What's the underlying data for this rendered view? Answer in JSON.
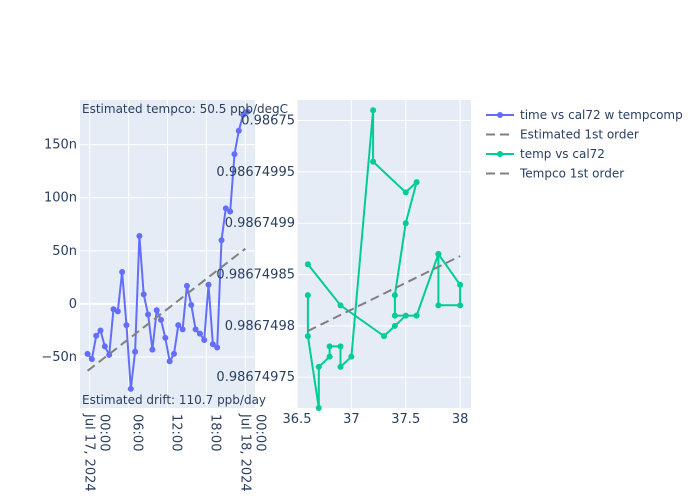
{
  "chart_data": [
    {
      "type": "line",
      "xlabel": "",
      "ylabel": "",
      "x_ticks": [
        "Jul 17, 2024 00:00",
        "06:00",
        "12:00",
        "18:00",
        "Jul 18, 2024 00:00"
      ],
      "y_ticks": [
        "−50n",
        "0",
        "50n",
        "100n",
        "150n"
      ],
      "y_tick_values": [
        -5e-08,
        0,
        5e-08,
        1e-07,
        1.5e-07
      ],
      "xlim": [
        "2024-07-16 22:30",
        "2024-07-18 01:30"
      ],
      "ylim": [
        -9.8e-08,
        1.92e-07
      ],
      "annotations": {
        "tempco": "Estimated tempco:  50.5 ppb/degC",
        "drift": "Estimated drift:  110.7 ppb/day"
      },
      "series": [
        {
          "name": "time vs cal72 w tempcomp",
          "color": "#636efa",
          "mode": "lines+markers",
          "x": [
            "2024-07-16 23:40",
            "2024-07-17 00:20",
            "2024-07-17 01:00",
            "2024-07-17 01:40",
            "2024-07-17 02:20",
            "2024-07-17 03:00",
            "2024-07-17 03:40",
            "2024-07-17 04:20",
            "2024-07-17 05:00",
            "2024-07-17 05:40",
            "2024-07-17 06:20",
            "2024-07-17 07:00",
            "2024-07-17 07:40",
            "2024-07-17 08:20",
            "2024-07-17 09:00",
            "2024-07-17 09:40",
            "2024-07-17 10:20",
            "2024-07-17 11:00",
            "2024-07-17 11:40",
            "2024-07-17 12:20",
            "2024-07-17 13:00",
            "2024-07-17 13:40",
            "2024-07-17 14:20",
            "2024-07-17 15:00",
            "2024-07-17 15:40",
            "2024-07-17 16:20",
            "2024-07-17 17:00",
            "2024-07-17 17:40",
            "2024-07-17 18:20",
            "2024-07-17 19:00",
            "2024-07-17 19:40",
            "2024-07-17 20:20",
            "2024-07-17 21:00",
            "2024-07-17 21:40",
            "2024-07-17 22:20",
            "2024-07-17 23:00",
            "2024-07-17 23:40",
            "2024-07-18 00:20"
          ],
          "y": [
            -4.7e-08,
            -5.2e-08,
            -3e-08,
            -2.5e-08,
            -4e-08,
            -4.8e-08,
            -5e-09,
            -7e-09,
            3e-08,
            -2e-08,
            -8e-08,
            -4.5e-08,
            6.4e-08,
            9e-09,
            -1e-08,
            -4.3e-08,
            -6e-09,
            -1.5e-08,
            -3.2e-08,
            -5.4e-08,
            -4.7e-08,
            -2e-08,
            -2.4e-08,
            1.7e-08,
            -1e-09,
            -2.4e-08,
            -2.8e-08,
            -3.4e-08,
            1.8e-08,
            -3.8e-08,
            -4.1e-08,
            6e-08,
            9e-08,
            8.7e-08,
            1.41e-07,
            1.63e-07,
            1.78e-07,
            1.81e-07
          ]
        },
        {
          "name": "Estimated 1st order",
          "color": "#808080",
          "mode": "dash",
          "x": [
            "2024-07-16 23:40",
            "2024-07-18 00:00"
          ],
          "y": [
            -6.3e-08,
            5.2e-08
          ]
        }
      ]
    },
    {
      "type": "scatter",
      "xlabel": "",
      "ylabel": "",
      "x_ticks": [
        "36.5",
        "37",
        "37.5",
        "38"
      ],
      "y_ticks": [
        "0.9867498",
        "0.98674985",
        "0.9867499",
        "0.98674995",
        "0.98675"
      ],
      "y_tick_values": [
        0.9867498,
        0.98674985,
        0.9867499,
        0.98674995,
        0.98675
      ],
      "y_tick_display": [
        "0.9867497",
        "0.9867498",
        "0.98674985",
        "0.9867499",
        "0.98674995",
        "0.98675"
      ],
      "xlim": [
        36.5,
        38.1
      ],
      "ylim": [
        0.98674972,
        0.98675002
      ],
      "series": [
        {
          "name": "temp vs cal72",
          "color": "#00cc96",
          "mode": "lines+markers",
          "x": [
            36.6,
            36.6,
            36.7,
            36.7,
            36.8,
            36.8,
            36.9,
            36.9,
            37.0,
            37.2,
            37.2,
            37.5,
            37.6,
            37.5,
            37.4,
            37.4,
            37.6,
            37.8,
            37.8,
            38.0,
            38.0,
            37.8,
            37.6,
            37.5,
            37.4,
            37.3,
            36.9,
            36.6
          ],
          "y": [
            0.98674983,
            0.98674979,
            0.98674972,
            0.98674976,
            0.98674977,
            0.98674978,
            0.98674978,
            0.98674976,
            0.98674977,
            0.98675001,
            0.98674996,
            0.98674993,
            0.98674994,
            0.9867499,
            0.98674983,
            0.98674981,
            0.98674981,
            0.98674987,
            0.98674982,
            0.98674982,
            0.98674984,
            0.98674987,
            0.98674981,
            0.98674981,
            0.9867498,
            0.98674979,
            0.98674982,
            0.98674986
          ]
        },
        {
          "name": "Tempco 1st order",
          "color": "#808080",
          "mode": "dash",
          "x": [
            36.6,
            38.0
          ],
          "y": [
            0.986749795,
            0.986749868
          ]
        }
      ]
    }
  ],
  "legend": [
    {
      "name": "time vs cal72 w tempcomp",
      "color": "#636efa",
      "kind": "line-marker"
    },
    {
      "name": "Estimated 1st order",
      "color": "#808080",
      "kind": "dash"
    },
    {
      "name": "temp vs cal72",
      "color": "#00cc96",
      "kind": "line-marker"
    },
    {
      "name": "Tempco 1st order",
      "color": "#808080",
      "kind": "dash"
    }
  ]
}
